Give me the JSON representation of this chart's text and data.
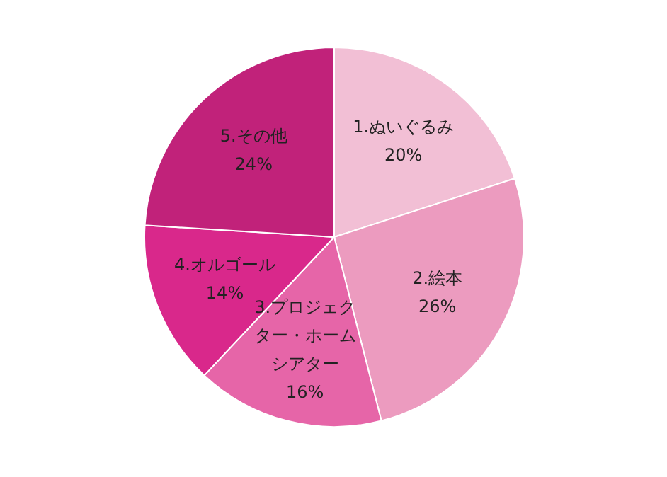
{
  "chart_data": {
    "type": "pie",
    "categories": [
      "1.ぬいぐるみ",
      "2.絵本",
      "3.プロジェクター・ホームシアター",
      "4.オルゴール",
      "5.その他"
    ],
    "values": [
      20,
      26,
      16,
      14,
      24
    ],
    "colors": [
      "#f2bfd5",
      "#ec9bbf",
      "#e665a8",
      "#d9288b",
      "#c1227a"
    ],
    "value_labels": [
      "20%",
      "26%",
      "16%",
      "14%",
      "24%"
    ],
    "legend": false
  }
}
